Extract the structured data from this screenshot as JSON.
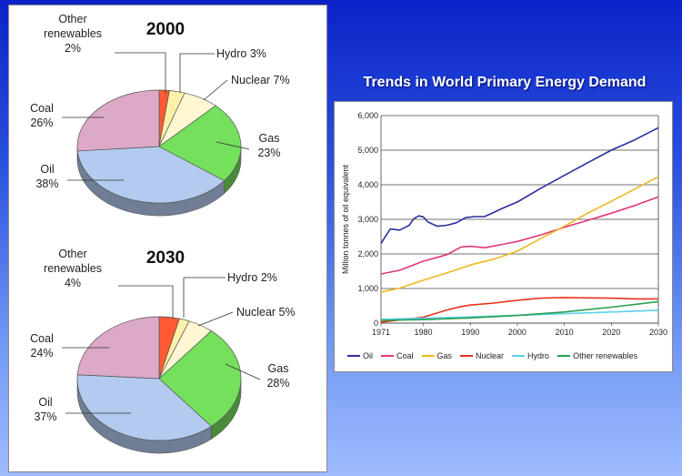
{
  "pies": [
    {
      "title": "2000",
      "slices": [
        {
          "label": "Other renewables",
          "label_text": "Other\nrenewables\n2%",
          "value": 2,
          "color": "#ff5a34"
        },
        {
          "label": "Hydro",
          "label_text": "Hydro 3%",
          "value": 3,
          "color": "#fff2a8"
        },
        {
          "label": "Nuclear",
          "label_text": "Nuclear 7%",
          "value": 7,
          "color": "#fff6d2"
        },
        {
          "label": "Gas",
          "label_text": "Gas\n23%",
          "value": 23,
          "color": "#74e05c"
        },
        {
          "label": "Oil",
          "label_text": "Oil\n38%",
          "value": 38,
          "color": "#b3cbef"
        },
        {
          "label": "Coal",
          "label_text": "Coal\n26%",
          "value": 26,
          "color": "#dca9c9"
        }
      ]
    },
    {
      "title": "2030",
      "slices": [
        {
          "label": "Other renewables",
          "label_text": "Other\nrenewables\n4%",
          "value": 4,
          "color": "#ff5a34"
        },
        {
          "label": "Hydro",
          "label_text": "Hydro 2%",
          "value": 2,
          "color": "#fff2a8"
        },
        {
          "label": "Nuclear",
          "label_text": "Nuclear 5%",
          "value": 5,
          "color": "#fff6d2"
        },
        {
          "label": "Gas",
          "label_text": "Gas\n28%",
          "value": 28,
          "color": "#74e05c"
        },
        {
          "label": "Oil",
          "label_text": "Oil\n37%",
          "value": 37,
          "color": "#b3cbef"
        },
        {
          "label": "Coal",
          "label_text": "Coal\n24%",
          "value": 24,
          "color": "#dca9c9"
        }
      ]
    }
  ],
  "chart_data": {
    "type": "line",
    "title": "Trends in World Primary Energy Demand",
    "ylabel": "Million tonnes of oil equivalent",
    "xlabel": "",
    "xlim": [
      1971,
      2030
    ],
    "ylim": [
      0,
      6000
    ],
    "x_ticks": [
      1971,
      1980,
      1990,
      2000,
      2010,
      2020,
      2030
    ],
    "y_ticks": [
      0,
      1000,
      2000,
      3000,
      4000,
      5000,
      6000
    ],
    "y_tick_labels": [
      "0",
      "1,000",
      "2,000",
      "3,000",
      "4,000",
      "5,000",
      "6,000"
    ],
    "grid": true,
    "legend_position": "bottom",
    "series": [
      {
        "name": "Oil",
        "color": "#2b2fa0",
        "points": [
          [
            1971,
            2300
          ],
          [
            1972,
            2520
          ],
          [
            1973,
            2720
          ],
          [
            1975,
            2690
          ],
          [
            1977,
            2830
          ],
          [
            1978,
            3020
          ],
          [
            1979,
            3100
          ],
          [
            1980,
            3070
          ],
          [
            1981,
            2920
          ],
          [
            1983,
            2800
          ],
          [
            1985,
            2830
          ],
          [
            1987,
            2900
          ],
          [
            1989,
            3050
          ],
          [
            1991,
            3080
          ],
          [
            1993,
            3080
          ],
          [
            1995,
            3200
          ],
          [
            1997,
            3330
          ],
          [
            2000,
            3500
          ],
          [
            2005,
            3900
          ],
          [
            2010,
            4270
          ],
          [
            2015,
            4640
          ],
          [
            2020,
            5000
          ],
          [
            2025,
            5300
          ],
          [
            2030,
            5650
          ]
        ]
      },
      {
        "name": "Coal",
        "color": "#e2367a",
        "points": [
          [
            1971,
            1420
          ],
          [
            1975,
            1530
          ],
          [
            1980,
            1790
          ],
          [
            1985,
            1980
          ],
          [
            1988,
            2200
          ],
          [
            1990,
            2220
          ],
          [
            1993,
            2180
          ],
          [
            1995,
            2230
          ],
          [
            1997,
            2280
          ],
          [
            2000,
            2360
          ],
          [
            2005,
            2550
          ],
          [
            2010,
            2770
          ],
          [
            2015,
            2970
          ],
          [
            2020,
            3180
          ],
          [
            2025,
            3400
          ],
          [
            2030,
            3650
          ]
        ]
      },
      {
        "name": "Gas",
        "color": "#f0b81e",
        "points": [
          [
            1971,
            900
          ],
          [
            1975,
            1010
          ],
          [
            1980,
            1240
          ],
          [
            1985,
            1450
          ],
          [
            1990,
            1680
          ],
          [
            1995,
            1850
          ],
          [
            2000,
            2080
          ],
          [
            2005,
            2450
          ],
          [
            2010,
            2800
          ],
          [
            2015,
            3180
          ],
          [
            2020,
            3520
          ],
          [
            2025,
            3880
          ],
          [
            2030,
            4230
          ]
        ]
      },
      {
        "name": "Nuclear",
        "color": "#e8321e",
        "points": [
          [
            1971,
            30
          ],
          [
            1975,
            90
          ],
          [
            1980,
            170
          ],
          [
            1985,
            380
          ],
          [
            1988,
            480
          ],
          [
            1990,
            520
          ],
          [
            1995,
            580
          ],
          [
            2000,
            660
          ],
          [
            2005,
            720
          ],
          [
            2010,
            740
          ],
          [
            2015,
            730
          ],
          [
            2020,
            720
          ],
          [
            2025,
            700
          ],
          [
            2030,
            700
          ]
        ]
      },
      {
        "name": "Hydro",
        "color": "#5cd0ee",
        "points": [
          [
            1971,
            110
          ],
          [
            1980,
            140
          ],
          [
            1990,
            180
          ],
          [
            2000,
            225
          ],
          [
            2010,
            270
          ],
          [
            2020,
            320
          ],
          [
            2030,
            370
          ]
        ]
      },
      {
        "name": "Other renewables",
        "color": "#28a050",
        "points": [
          [
            1971,
            80
          ],
          [
            1980,
            100
          ],
          [
            1990,
            150
          ],
          [
            2000,
            220
          ],
          [
            2010,
            320
          ],
          [
            2020,
            460
          ],
          [
            2030,
            620
          ]
        ]
      }
    ]
  }
}
